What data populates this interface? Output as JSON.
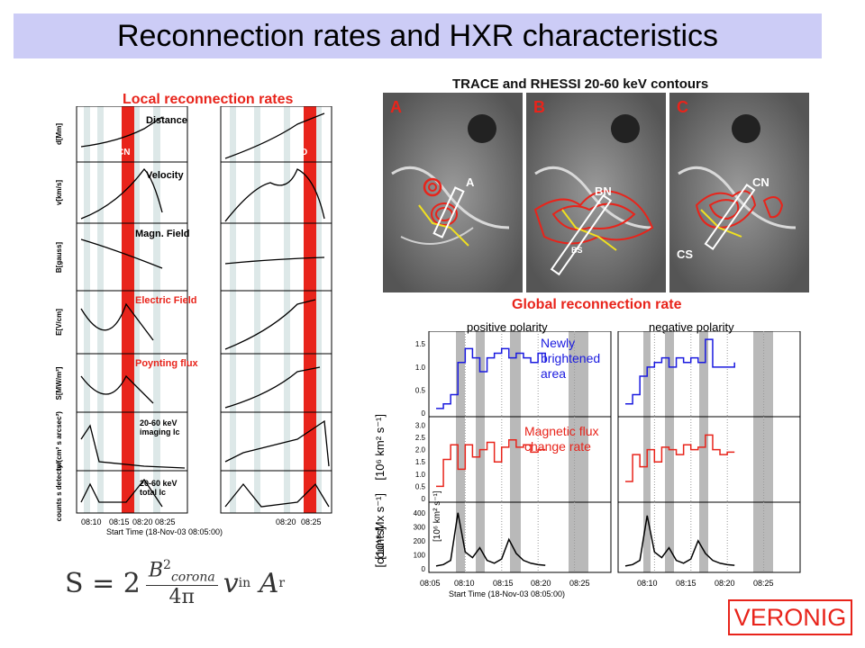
{
  "slide": {
    "title": "Reconnection rates and HXR characteristics",
    "credit": "VERONIG"
  },
  "left_figure": {
    "heading": "Local reconnection rates",
    "panels": [
      {
        "label": "Distance",
        "ylabel": "d[Mm]",
        "marker": "CN",
        "marker_right": "D"
      },
      {
        "label": "Velocity",
        "ylabel": "v[km/s]"
      },
      {
        "label": "Magn. Field",
        "ylabel": "B[gauss]"
      },
      {
        "label": "Electric Field",
        "ylabel": "E[V/cm]"
      },
      {
        "label": "Poynting flux",
        "ylabel": "S[MW/m²]"
      },
      {
        "label": "20-60 keV imaging lc",
        "ylabel": "ty/(cm² s arcsec²)"
      },
      {
        "label": "20-60 keV total lc",
        "ylabel": "counts s detector"
      }
    ],
    "xticks_left": [
      "08:10",
      "08:15",
      "08:20"
    ],
    "xticks_right": [
      "08:20",
      "08:25"
    ],
    "xaxis_title": "Start Time (18-Nov-03 08:05:00)"
  },
  "trace_figure": {
    "heading": "TRACE and RHESSI 20-60 keV contours",
    "panels": [
      {
        "letter": "A",
        "labels": [
          "A"
        ]
      },
      {
        "letter": "B",
        "labels": [
          "BN",
          "BS"
        ]
      },
      {
        "letter": "C",
        "labels": [
          "CN",
          "CS"
        ]
      }
    ]
  },
  "global_figure": {
    "heading": "Global reconnection rate",
    "positive_label": "positive polarity",
    "negative_label": "negative polarity",
    "area_label": "Newly brightened area",
    "flux_label": "Magnetic flux change rate",
    "ylabel_top": "[10⁶ km² s⁻¹]",
    "ylabel_mid": "[10¹⁸ Mx s⁻¹]",
    "ylabel_bot": "[counts]",
    "xticks_left": [
      "08:05",
      "08:10",
      "08:15",
      "08:20"
    ],
    "xticks_right": [
      "08:10",
      "08:15",
      "08:20",
      "08:25"
    ],
    "xtick_gap": "08:25",
    "xaxis_title": "Start Time (18-Nov-03 08:05:00)",
    "yticks_area": [
      "0",
      "0.5",
      "1.0",
      "1.5"
    ],
    "yticks_flux": [
      "0",
      "0.5",
      "1.0",
      "1.5",
      "2.0",
      "2.5",
      "3.0"
    ],
    "yticks_counts": [
      "0",
      "100",
      "200",
      "300",
      "400"
    ]
  },
  "formula": {
    "lhs": "S = 2",
    "num": "B",
    "num_sup": "2",
    "num_sub": "corona",
    "den": "4π",
    "tail": "v",
    "tail_sub1": "in",
    "tail2": "A",
    "tail_sub2": "r"
  },
  "colors": {
    "red": "#e8241b",
    "blue": "#1a1adf",
    "band_gray": "#b9b9b9",
    "title_band": "#ccccf6"
  },
  "chart_data": {
    "type": "line",
    "title": "Global reconnection rate",
    "panels": [
      {
        "name": "Newly brightened area",
        "x": [
          "08:05",
          "08:06",
          "08:07",
          "08:08",
          "08:09",
          "08:10",
          "08:11",
          "08:12",
          "08:13",
          "08:14",
          "08:15",
          "08:16",
          "08:17",
          "08:18",
          "08:19",
          "08:20"
        ],
        "series": [
          {
            "name": "positive polarity",
            "values": [
              0.1,
              0.2,
              0.4,
              1.1,
              1.4,
              1.2,
              0.9,
              1.2,
              1.3,
              1.4,
              1.2,
              1.3,
              1.2,
              1.1,
              1.3,
              1.1
            ]
          },
          {
            "name": "negative polarity",
            "values": [
              0.2,
              0.4,
              0.8,
              1.0,
              1.1,
              1.2,
              1.0,
              1.2,
              1.1,
              1.2,
              1.1,
              1.6,
              1.0,
              1.0,
              1.0,
              1.1
            ]
          }
        ],
        "ylim": [
          0,
          1.7
        ]
      },
      {
        "name": "Magnetic flux change rate",
        "x": [
          "08:05",
          "08:06",
          "08:07",
          "08:08",
          "08:09",
          "08:10",
          "08:11",
          "08:12",
          "08:13",
          "08:14",
          "08:15",
          "08:16",
          "08:17",
          "08:18",
          "08:19",
          "08:20"
        ],
        "series": [
          {
            "name": "positive polarity",
            "values": [
              0.5,
              1.6,
              2.2,
              1.2,
              2.2,
              1.7,
              2.0,
              2.3,
              1.5,
              2.1,
              2.4,
              2.1,
              2.2,
              1.9,
              2.0,
              2.0
            ]
          },
          {
            "name": "negative polarity",
            "values": [
              0.7,
              1.8,
              1.3,
              2.0,
              1.5,
              2.1,
              2.0,
              1.8,
              2.2,
              2.0,
              2.1,
              2.6,
              2.0,
              1.8,
              1.9,
              1.9
            ]
          }
        ],
        "ylim": [
          0,
          3.2
        ]
      },
      {
        "name": "HXR counts",
        "x": [
          "08:05",
          "08:06",
          "08:07",
          "08:08",
          "08:09",
          "08:10",
          "08:11",
          "08:12",
          "08:13",
          "08:14",
          "08:15",
          "08:16",
          "08:17",
          "08:18",
          "08:19",
          "08:20"
        ],
        "series": [
          {
            "name": "positive polarity",
            "values": [
              20,
              30,
              60,
              400,
              120,
              80,
              150,
              60,
              40,
              70,
              210,
              110,
              60,
              40,
              30,
              25
            ]
          },
          {
            "name": "negative polarity",
            "values": [
              20,
              30,
              60,
              380,
              120,
              80,
              150,
              60,
              40,
              70,
              200,
              110,
              60,
              40,
              30,
              25
            ]
          }
        ],
        "ylim": [
          0,
          450
        ]
      }
    ]
  }
}
